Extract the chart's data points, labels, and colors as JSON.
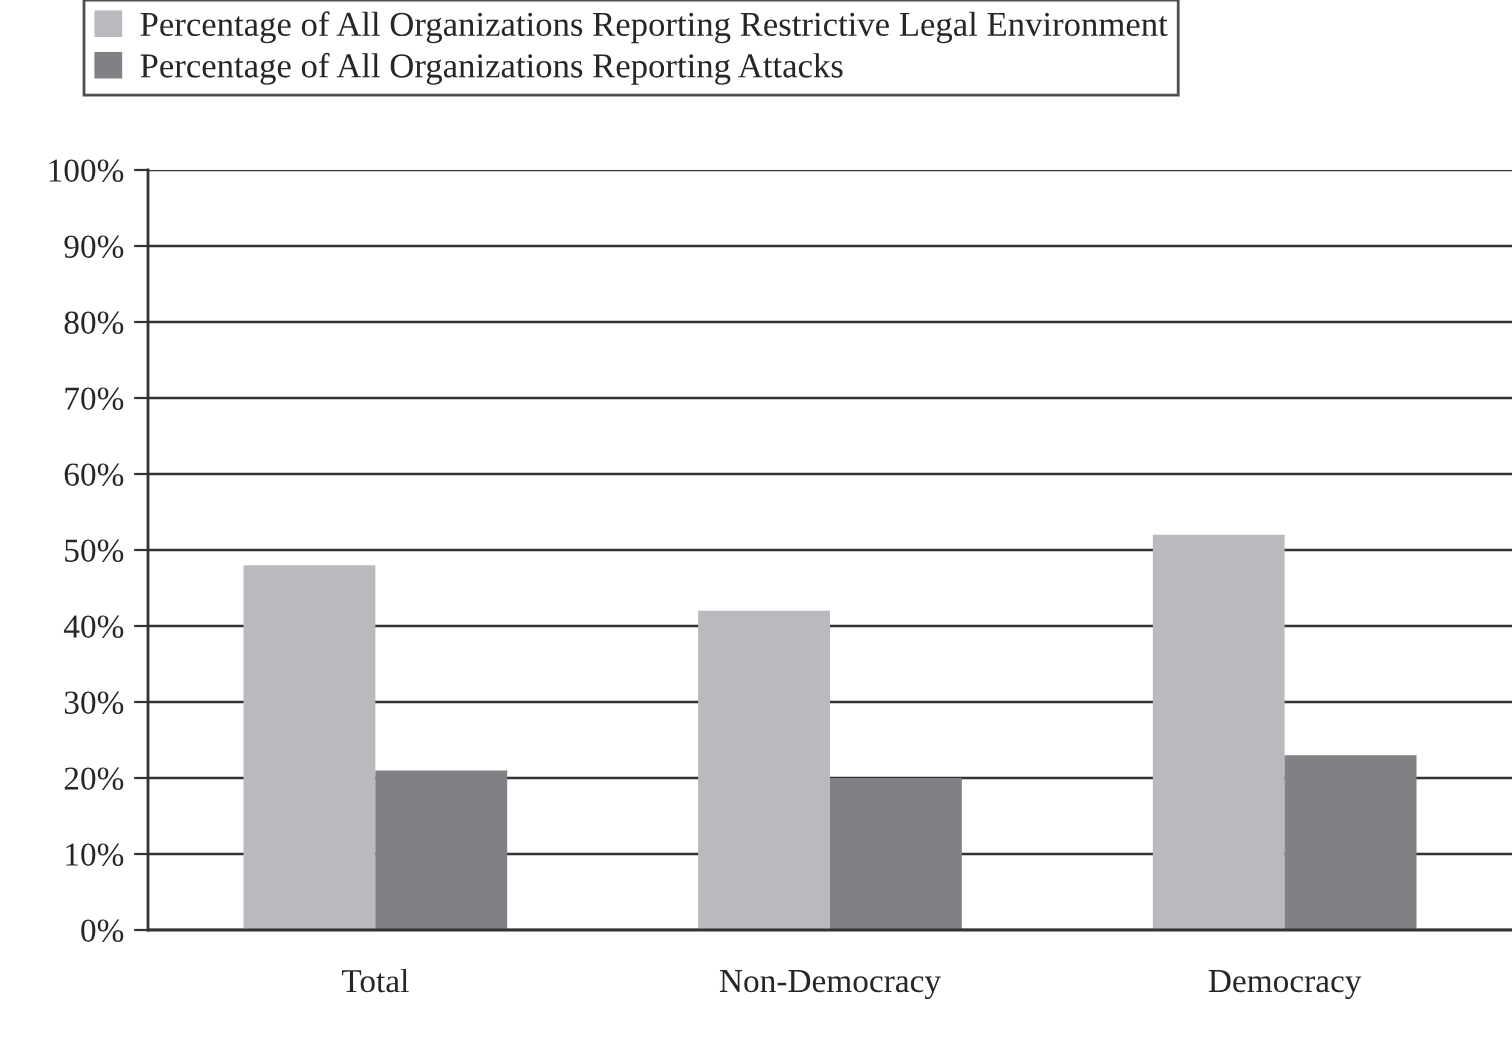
{
  "chart_data": {
    "type": "bar",
    "categories": [
      "Total",
      "Non-Democracy",
      "Democracy"
    ],
    "series": [
      {
        "name": "Percentage of All Organizations Reporting Restrictive Legal Environment",
        "color": "#b9babe",
        "values": [
          48,
          42,
          52
        ]
      },
      {
        "name": "Percentage of All Organizations Reporting Attacks",
        "color": "#808185",
        "values": [
          21,
          20,
          23
        ]
      }
    ],
    "ylim": [
      0,
      100
    ],
    "yticks": [
      {
        "value": 0,
        "label": "0%"
      },
      {
        "value": 10,
        "label": "10%"
      },
      {
        "value": 20,
        "label": "20%"
      },
      {
        "value": 30,
        "label": "30%"
      },
      {
        "value": 40,
        "label": "40%"
      },
      {
        "value": 50,
        "label": "50%"
      },
      {
        "value": 60,
        "label": "60%"
      },
      {
        "value": 70,
        "label": "70%"
      },
      {
        "value": 80,
        "label": "80%"
      },
      {
        "value": 90,
        "label": "90%"
      },
      {
        "value": 100,
        "label": "100%"
      }
    ],
    "grid": "y",
    "legend": "top"
  }
}
